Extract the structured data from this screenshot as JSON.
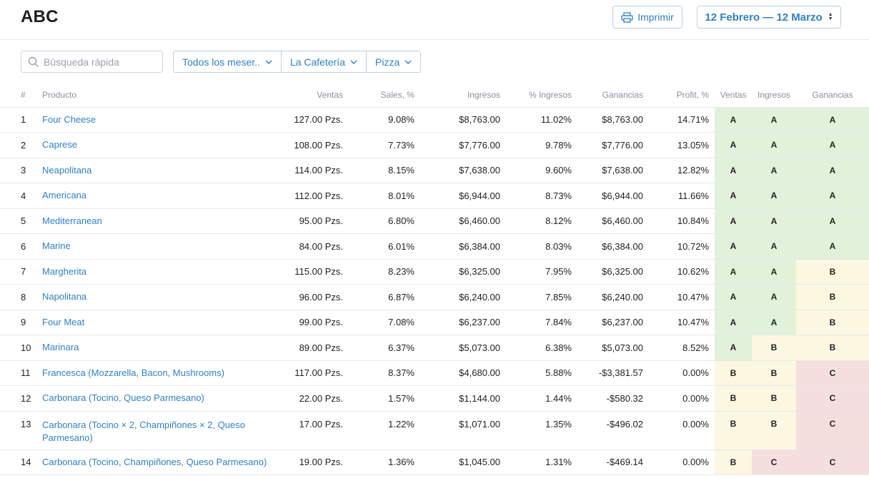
{
  "header": {
    "title": "ABC",
    "print_label": "Imprimir",
    "date_range": "12 Febrero — 12 Marzo"
  },
  "toolbar": {
    "search_placeholder": "Búsqueda rápida",
    "filters": [
      "Todos los meser..",
      "La Cafetería",
      "Pizza"
    ]
  },
  "table": {
    "columns": [
      "#",
      "Producto",
      "Ventas",
      "Sales, %",
      "Ingresos",
      "% Ingresos",
      "Ganancias",
      "Profit, %",
      "Ventas",
      "Ingresos",
      "Ganancias"
    ],
    "rows": [
      [
        "1",
        "Four Cheese",
        "127.00 Pzs.",
        "9.08%",
        "$8,763.00",
        "11.02%",
        "$8,763.00",
        "14.71%",
        "A",
        "A",
        "A"
      ],
      [
        "2",
        "Caprese",
        "108.00 Pzs.",
        "7.73%",
        "$7,776.00",
        "9.78%",
        "$7,776.00",
        "13.05%",
        "A",
        "A",
        "A"
      ],
      [
        "3",
        "Neapolitana",
        "114.00 Pzs.",
        "8.15%",
        "$7,638.00",
        "9.60%",
        "$7,638.00",
        "12.82%",
        "A",
        "A",
        "A"
      ],
      [
        "4",
        "Americana",
        "112.00 Pzs.",
        "8.01%",
        "$6,944.00",
        "8.73%",
        "$6,944.00",
        "11.66%",
        "A",
        "A",
        "A"
      ],
      [
        "5",
        "Mediterranean",
        "95.00 Pzs.",
        "6.80%",
        "$6,460.00",
        "8.12%",
        "$6,460.00",
        "10.84%",
        "A",
        "A",
        "A"
      ],
      [
        "6",
        "Marine",
        "84.00 Pzs.",
        "6.01%",
        "$6,384.00",
        "8.03%",
        "$6,384.00",
        "10.72%",
        "A",
        "A",
        "A"
      ],
      [
        "7",
        "Margherita",
        "115.00 Pzs.",
        "8.23%",
        "$6,325.00",
        "7.95%",
        "$6,325.00",
        "10.62%",
        "A",
        "A",
        "B"
      ],
      [
        "8",
        "Napolitana",
        "96.00 Pzs.",
        "6.87%",
        "$6,240.00",
        "7.85%",
        "$6,240.00",
        "10.47%",
        "A",
        "A",
        "B"
      ],
      [
        "9",
        "Four Meat",
        "99.00 Pzs.",
        "7.08%",
        "$6,237.00",
        "7.84%",
        "$6,237.00",
        "10.47%",
        "A",
        "A",
        "B"
      ],
      [
        "10",
        "Marinara",
        "89.00 Pzs.",
        "6.37%",
        "$5,073.00",
        "6.38%",
        "$5,073.00",
        "8.52%",
        "A",
        "B",
        "B"
      ],
      [
        "11",
        "Francesca (Mozzarella, Bacon, Mushrooms)",
        "117.00 Pzs.",
        "8.37%",
        "$4,680.00",
        "5.88%",
        "-$3,381.57",
        "0.00%",
        "B",
        "B",
        "C"
      ],
      [
        "12",
        "Carbonara (Tocino, Queso Parmesano)",
        "22.00 Pzs.",
        "1.57%",
        "$1,144.00",
        "1.44%",
        "-$580.32",
        "0.00%",
        "B",
        "B",
        "C"
      ],
      [
        "13",
        "Carbonara (Tocino × 2, Champiñones × 2, Queso Parmesano)",
        "17.00 Pzs.",
        "1.22%",
        "$1,071.00",
        "1.35%",
        "-$496.02",
        "0.00%",
        "B",
        "B",
        "C"
      ],
      [
        "14",
        "Carbonara (Tocino, Champiñones, Queso Parmesano)",
        "19.00 Pzs.",
        "1.36%",
        "$1,045.00",
        "1.31%",
        "-$469.14",
        "0.00%",
        "B",
        "C",
        "C"
      ]
    ]
  },
  "colors": {
    "accent": "#2f80c8",
    "grade_A": "#e2f1da",
    "grade_B": "#fcf7e1",
    "grade_C": "#f4dede"
  }
}
